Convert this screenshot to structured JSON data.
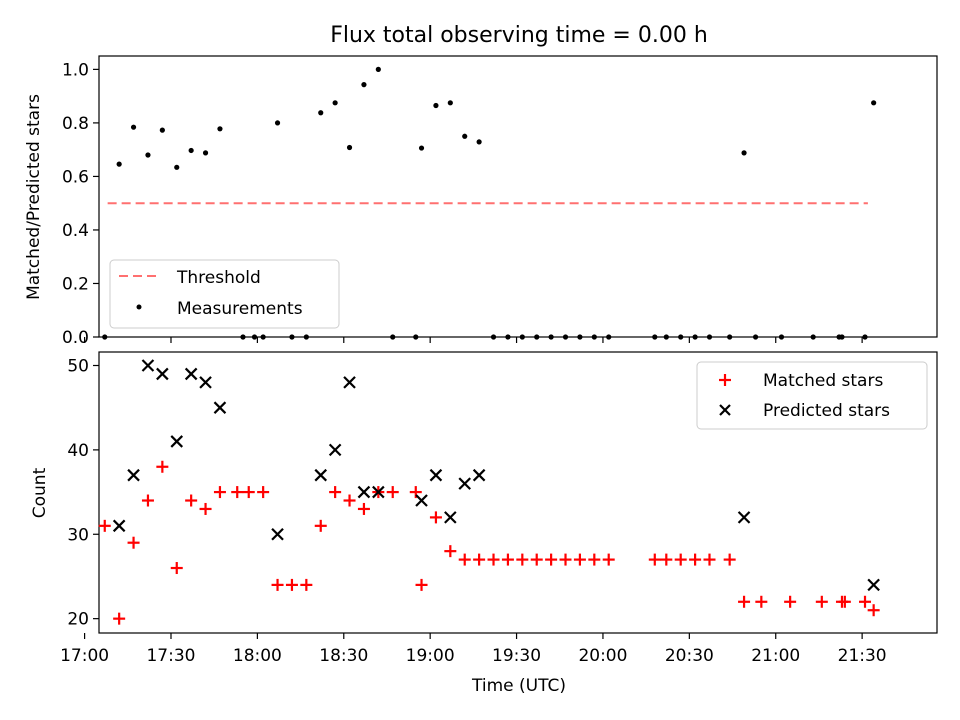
{
  "chart_data": {
    "type": "scatter",
    "title": "Flux total observing time = 0.00 h",
    "xlabel": "Time (UTC)",
    "xticks": [
      "17:00",
      "17:30",
      "18:00",
      "18:30",
      "19:00",
      "19:30",
      "20:00",
      "20:30",
      "21:00",
      "21:30"
    ],
    "xlim_minutes": [
      1025,
      1316
    ],
    "top_panel": {
      "ylabel": "Matched/Predicted stars",
      "ylim": [
        0,
        1.05
      ],
      "yticks": [
        "0.0",
        "0.2",
        "0.4",
        "0.6",
        "0.8",
        "1.0"
      ],
      "threshold": {
        "name": "Threshold",
        "value": 0.5,
        "x_range": [
          1028,
          1292
        ],
        "color": "#ff7070"
      },
      "measurements": {
        "name": "Measurements",
        "color": "#000000",
        "points": [
          [
            1027,
            0.0
          ],
          [
            1032,
            0.646
          ],
          [
            1037,
            0.784
          ],
          [
            1042,
            0.68
          ],
          [
            1047,
            0.773
          ],
          [
            1052,
            0.634
          ],
          [
            1057,
            0.697
          ],
          [
            1062,
            0.688
          ],
          [
            1067,
            0.778
          ],
          [
            1075,
            0.0
          ],
          [
            1079,
            0.0
          ],
          [
            1082,
            0.0
          ],
          [
            1087,
            0.8
          ],
          [
            1092,
            0.0
          ],
          [
            1097,
            0.0
          ],
          [
            1102,
            0.838
          ],
          [
            1107,
            0.875
          ],
          [
            1112,
            0.708
          ],
          [
            1117,
            0.943
          ],
          [
            1122,
            1.0
          ],
          [
            1127,
            0.0
          ],
          [
            1135,
            0.0
          ],
          [
            1137,
            0.706
          ],
          [
            1142,
            0.865
          ],
          [
            1147,
            0.875
          ],
          [
            1152,
            0.75
          ],
          [
            1157,
            0.729
          ],
          [
            1162,
            0.0
          ],
          [
            1167,
            0.0
          ],
          [
            1172,
            0.0
          ],
          [
            1177,
            0.0
          ],
          [
            1182,
            0.0
          ],
          [
            1187,
            0.0
          ],
          [
            1192,
            0.0
          ],
          [
            1197,
            0.0
          ],
          [
            1202,
            0.0
          ],
          [
            1218,
            0.0
          ],
          [
            1222,
            0.0
          ],
          [
            1227,
            0.0
          ],
          [
            1232,
            0.0
          ],
          [
            1237,
            0.0
          ],
          [
            1244,
            0.0
          ],
          [
            1249,
            0.688
          ],
          [
            1253,
            0.0
          ],
          [
            1262,
            0.0
          ],
          [
            1273,
            0.0
          ],
          [
            1282,
            0.0
          ],
          [
            1283,
            0.0
          ],
          [
            1291,
            0.0
          ],
          [
            1294,
            0.875
          ]
        ]
      }
    },
    "bottom_panel": {
      "ylabel": "Count",
      "ylim": [
        18.3,
        51.6
      ],
      "yticks": [
        "20",
        "30",
        "40",
        "50"
      ],
      "series": [
        {
          "name": "Matched stars",
          "marker": "plus",
          "color": "#ff0000",
          "points": [
            [
              1027,
              31
            ],
            [
              1032,
              20
            ],
            [
              1037,
              29
            ],
            [
              1042,
              34
            ],
            [
              1047,
              38
            ],
            [
              1052,
              26
            ],
            [
              1057,
              34
            ],
            [
              1062,
              33
            ],
            [
              1067,
              35
            ],
            [
              1073,
              35
            ],
            [
              1077,
              35
            ],
            [
              1082,
              35
            ],
            [
              1087,
              24
            ],
            [
              1092,
              24
            ],
            [
              1097,
              24
            ],
            [
              1102,
              31
            ],
            [
              1107,
              35
            ],
            [
              1112,
              34
            ],
            [
              1117,
              33
            ],
            [
              1122,
              35
            ],
            [
              1127,
              35
            ],
            [
              1135,
              35
            ],
            [
              1137,
              24
            ],
            [
              1142,
              32
            ],
            [
              1147,
              28
            ],
            [
              1152,
              27
            ],
            [
              1157,
              27
            ],
            [
              1162,
              27
            ],
            [
              1167,
              27
            ],
            [
              1172,
              27
            ],
            [
              1177,
              27
            ],
            [
              1182,
              27
            ],
            [
              1187,
              27
            ],
            [
              1192,
              27
            ],
            [
              1197,
              27
            ],
            [
              1202,
              27
            ],
            [
              1218,
              27
            ],
            [
              1222,
              27
            ],
            [
              1227,
              27
            ],
            [
              1232,
              27
            ],
            [
              1237,
              27
            ],
            [
              1244,
              27
            ],
            [
              1249,
              22
            ],
            [
              1255,
              22
            ],
            [
              1265,
              22
            ],
            [
              1276,
              22
            ],
            [
              1283,
              22
            ],
            [
              1284,
              22
            ],
            [
              1291,
              22
            ],
            [
              1294,
              21
            ]
          ]
        },
        {
          "name": "Predicted stars",
          "marker": "x",
          "color": "#000000",
          "points": [
            [
              1032,
              31
            ],
            [
              1037,
              37
            ],
            [
              1042,
              50
            ],
            [
              1047,
              49
            ],
            [
              1052,
              41
            ],
            [
              1057,
              49
            ],
            [
              1062,
              48
            ],
            [
              1067,
              45
            ],
            [
              1087,
              30
            ],
            [
              1102,
              37
            ],
            [
              1107,
              40
            ],
            [
              1112,
              48
            ],
            [
              1117,
              35
            ],
            [
              1122,
              35
            ],
            [
              1137,
              34
            ],
            [
              1142,
              37
            ],
            [
              1147,
              32
            ],
            [
              1152,
              36
            ],
            [
              1157,
              37
            ],
            [
              1249,
              32
            ],
            [
              1294,
              24
            ]
          ]
        }
      ]
    }
  }
}
